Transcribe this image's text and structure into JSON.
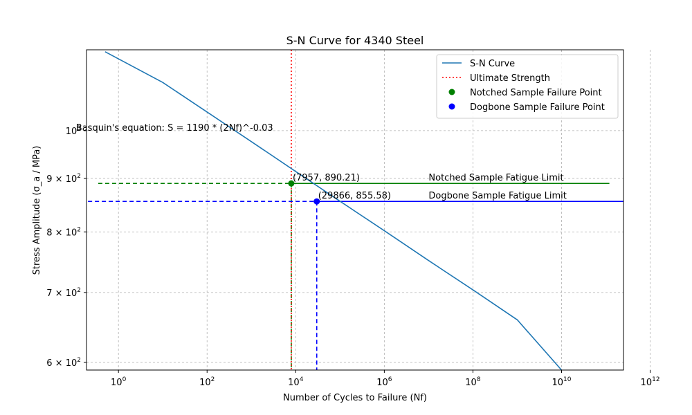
{
  "chart_data": {
    "type": "line",
    "title": "S-N Curve for 4340 Steel",
    "xlabel": "Number of Cycles to Failure (Nf)",
    "ylabel": "Stress Amplitude (σ_a / MPa)",
    "xscale": "log",
    "yscale": "log",
    "xlim": [
      0.19,
      250000000000
    ],
    "ylim": [
      590,
      1195
    ],
    "grid": true,
    "legend_position": "top-right",
    "x_ticks": [
      {
        "value": 1,
        "base": "10",
        "exp": "0"
      },
      {
        "value": 100,
        "base": "10",
        "exp": "2"
      },
      {
        "value": 10000,
        "base": "10",
        "exp": "4"
      },
      {
        "value": 1000000,
        "base": "10",
        "exp": "6"
      },
      {
        "value": 100000000,
        "base": "10",
        "exp": "8"
      },
      {
        "value": 10000000000,
        "base": "10",
        "exp": "10"
      },
      {
        "value": 1000000000000,
        "base": "10",
        "exp": "12"
      }
    ],
    "y_ticks": [
      {
        "value": 600,
        "mant": "6 × ",
        "base": "10",
        "exp": "2"
      },
      {
        "value": 700,
        "mant": "7 × ",
        "base": "10",
        "exp": "2"
      },
      {
        "value": 800,
        "mant": "8 × ",
        "base": "10",
        "exp": "2"
      },
      {
        "value": 900,
        "mant": "9 × ",
        "base": "10",
        "exp": "2"
      },
      {
        "value": 1000,
        "mant": "",
        "base": "10",
        "exp": "3"
      }
    ],
    "sn_curve": {
      "name": "S-N Curve",
      "color": "#1f77b4",
      "x": [
        0.5,
        10.0,
        100.0,
        1000.0,
        10000.0,
        100000.0,
        1000000.0,
        10000000.0,
        100000000.0,
        1000000000.0,
        10000000000.0
      ],
      "y": [
        1190,
        1112,
        1042,
        976,
        914,
        856,
        802,
        751,
        704,
        659,
        590
      ]
    },
    "ultimate_strength": {
      "name": "Ultimate Strength",
      "color": "#ff0000",
      "x": 7957
    },
    "points": [
      {
        "name": "Notched Sample Failure Point",
        "color": "#008000",
        "x": 7957,
        "y": 890.21,
        "label": "(7957, 890.21)",
        "limit_label": "Notched Sample Fatigue Limit",
        "limit_x_start": 0.35,
        "limit_x_end": 120000000000
      },
      {
        "name": "Dogbone Sample Failure Point",
        "color": "#0000ff",
        "x": 29866,
        "y": 855.58,
        "label": "(29866, 855.58)",
        "limit_label": "Dogbone Sample Fatigue Limit",
        "limit_x_start": 0.1,
        "limit_x_end": 500000000000
      }
    ],
    "limit_label_x": 10000000,
    "annotation": {
      "text": "Basquin's equation: S = 1190 * (2Nf)^-0.03",
      "x": 0.11,
      "y": 1000
    },
    "legend": [
      {
        "label": "S-N Curve",
        "kind": "line",
        "color": "#1f77b4"
      },
      {
        "label": "Ultimate Strength",
        "kind": "dotted",
        "color": "#ff0000"
      },
      {
        "label": "Notched Sample Failure Point",
        "kind": "marker",
        "color": "#008000"
      },
      {
        "label": "Dogbone Sample Failure Point",
        "kind": "marker",
        "color": "#0000ff"
      }
    ]
  }
}
